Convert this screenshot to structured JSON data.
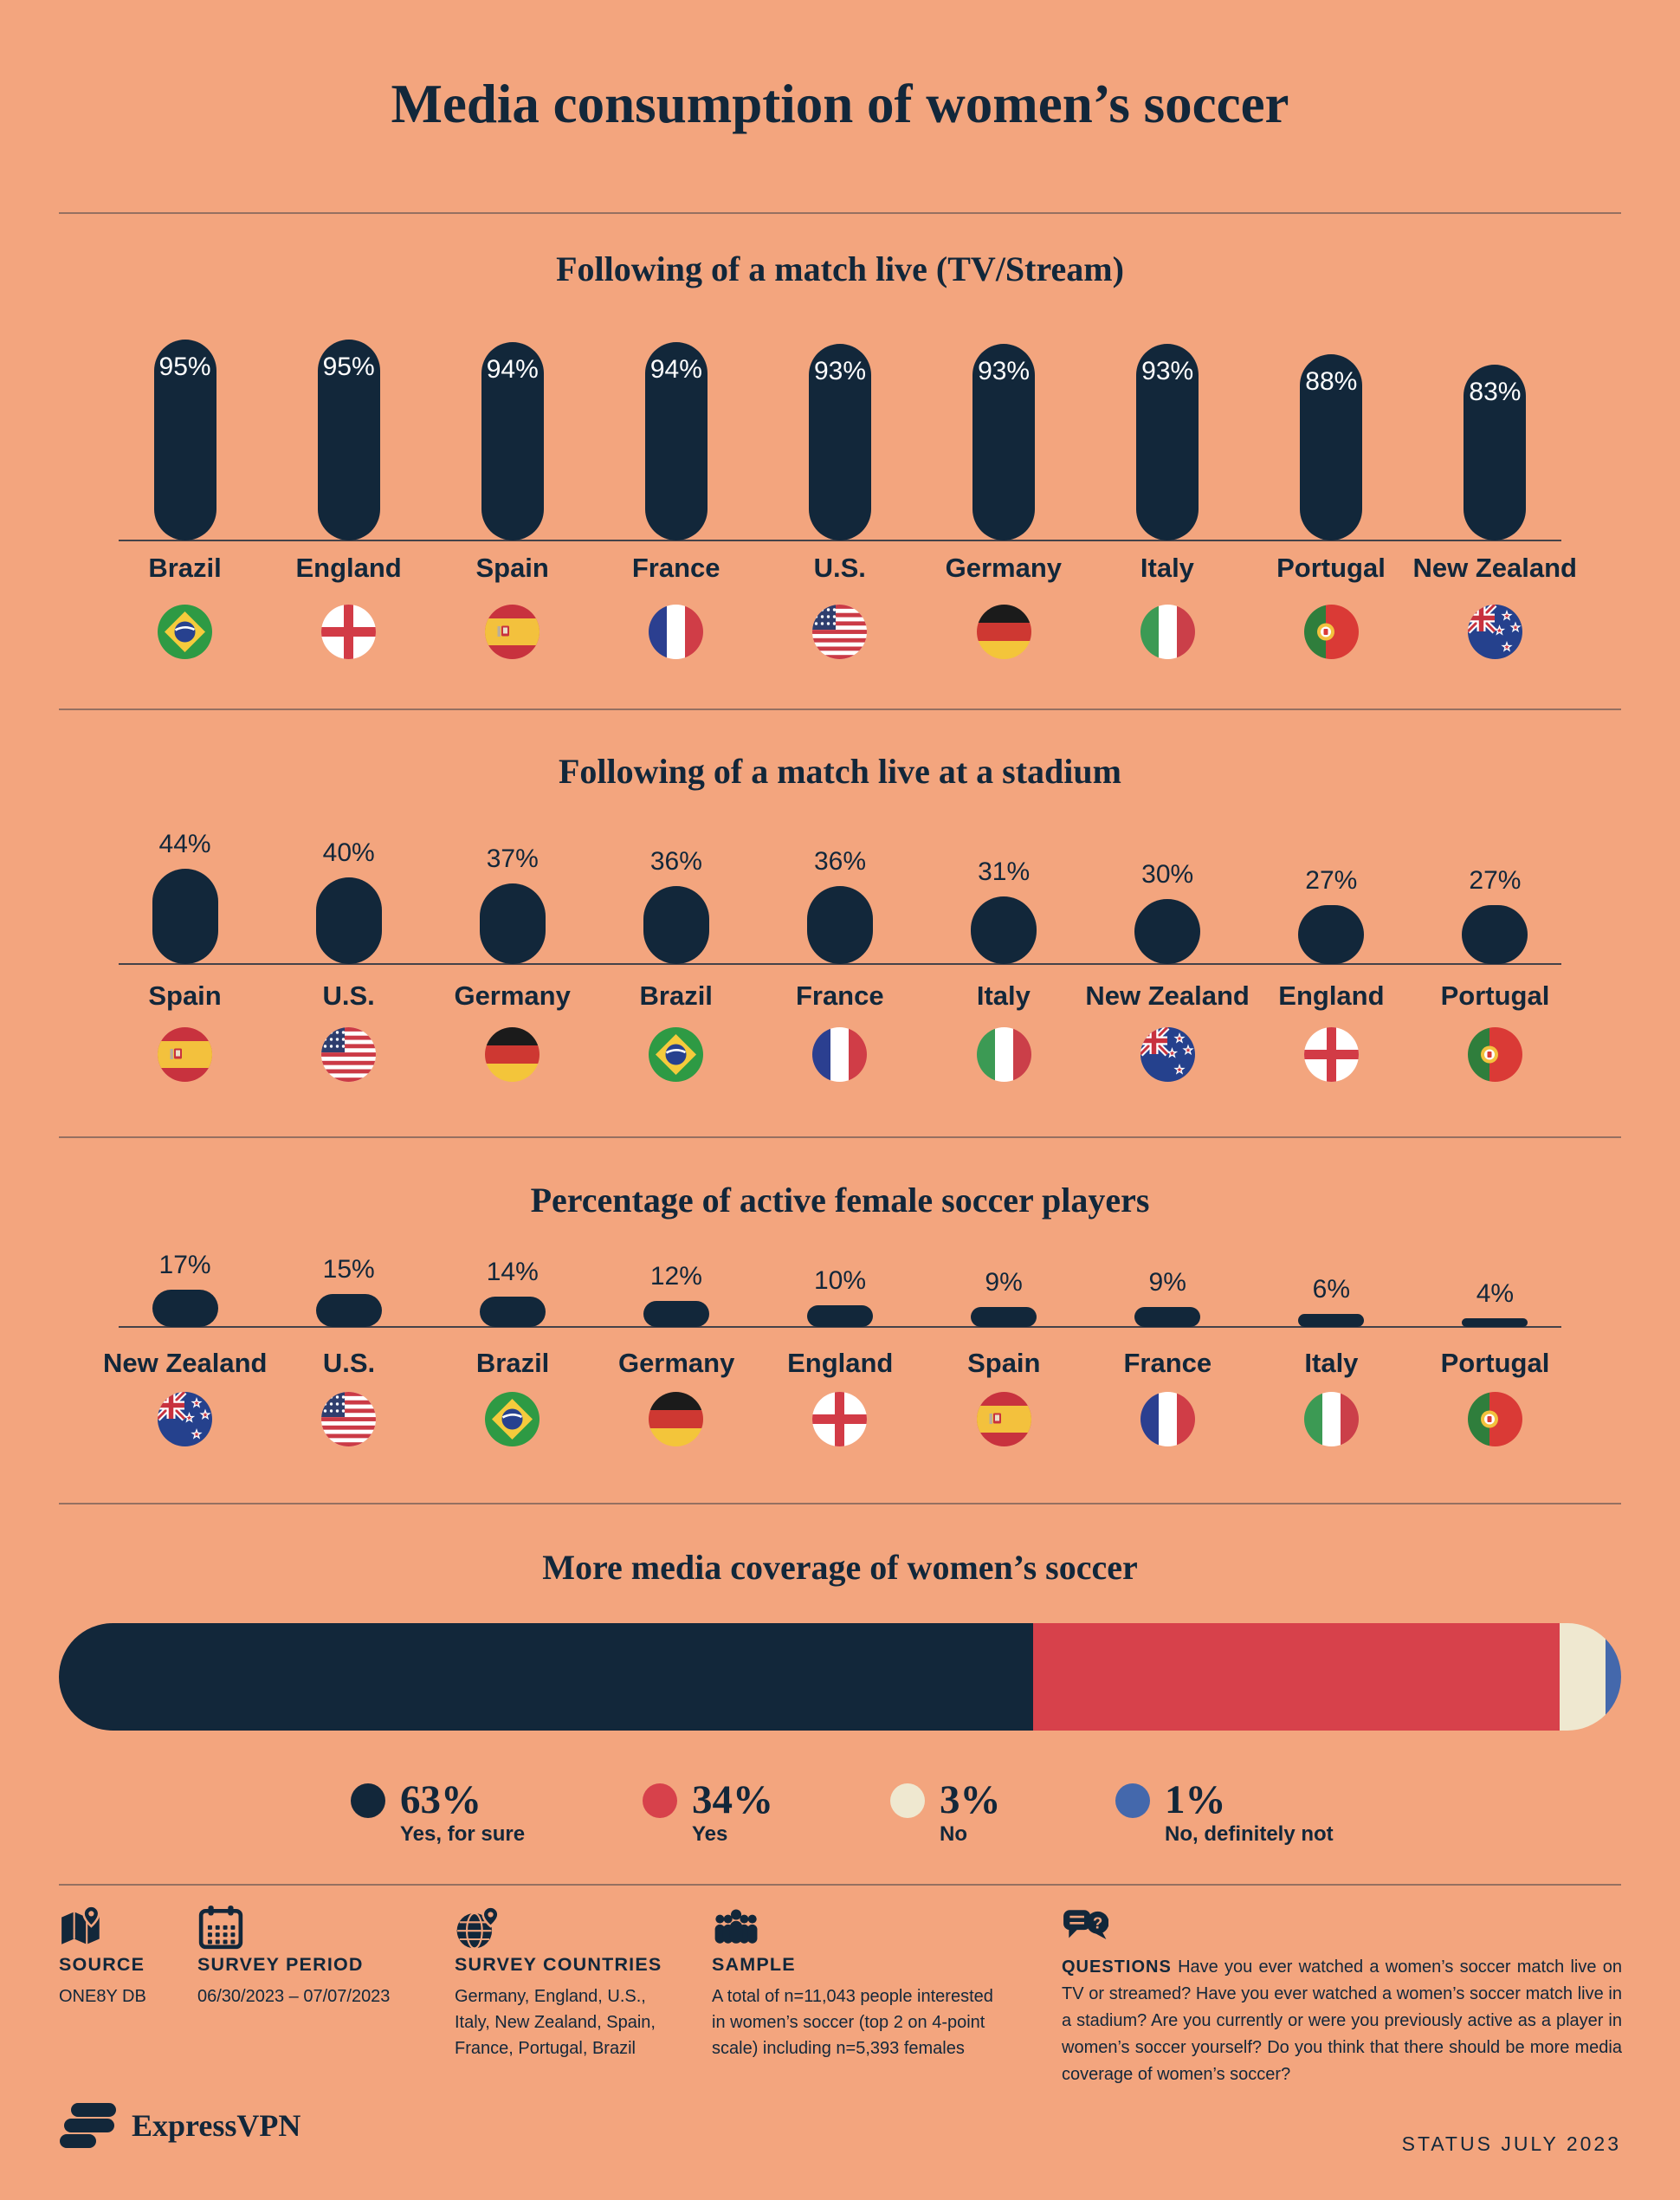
{
  "page": {
    "title": "Media consumption of women’s soccer",
    "brand": "ExpressVPN",
    "status": "STATUS JULY 2023"
  },
  "colors": {
    "background": "#F3A57E",
    "ink": "#12273A",
    "red": "#D7414B",
    "cream": "#EFE8D0",
    "blue": "#4468AC"
  },
  "chart_data": [
    {
      "id": "tv-stream",
      "type": "bar",
      "title": "Following of a match live (TV/Stream)",
      "unit": "%",
      "bar_shape": "pill",
      "value_label_position": "inside-top",
      "categories": [
        "Brazil",
        "England",
        "Spain",
        "France",
        "U.S.",
        "Germany",
        "Italy",
        "Portugal",
        "New Zealand"
      ],
      "values": [
        95,
        95,
        94,
        94,
        93,
        93,
        93,
        88,
        83
      ],
      "flags": [
        "brazil",
        "england",
        "spain",
        "france",
        "us",
        "germany",
        "italy",
        "portugal",
        "new-zealand"
      ],
      "ylim": [
        0,
        100
      ],
      "grid": false
    },
    {
      "id": "stadium",
      "type": "bar",
      "title": "Following of a match live at a stadium",
      "unit": "%",
      "bar_shape": "pill",
      "value_label_position": "above",
      "categories": [
        "Spain",
        "U.S.",
        "Germany",
        "Brazil",
        "France",
        "Italy",
        "New Zealand",
        "England",
        "Portugal"
      ],
      "values": [
        44,
        40,
        37,
        36,
        36,
        31,
        30,
        27,
        27
      ],
      "flags": [
        "spain",
        "us",
        "germany",
        "brazil",
        "france",
        "italy",
        "new-zealand",
        "england",
        "portugal"
      ],
      "ylim": [
        0,
        100
      ],
      "grid": false
    },
    {
      "id": "active-players",
      "type": "bar",
      "title": "Percentage of active female soccer players",
      "unit": "%",
      "bar_shape": "pill",
      "value_label_position": "above",
      "categories": [
        "New Zealand",
        "U.S.",
        "Brazil",
        "Germany",
        "England",
        "Spain",
        "France",
        "Italy",
        "Portugal"
      ],
      "values": [
        17,
        15,
        14,
        12,
        10,
        9,
        9,
        6,
        4
      ],
      "flags": [
        "new-zealand",
        "us",
        "brazil",
        "germany",
        "england",
        "spain",
        "france",
        "italy",
        "portugal"
      ],
      "ylim": [
        0,
        100
      ],
      "grid": false
    },
    {
      "id": "media-coverage",
      "type": "stacked-bar",
      "title": "More media coverage of women’s soccer",
      "unit": "%",
      "segments": [
        {
          "label": "Yes, for sure",
          "value": 63,
          "color": "#12273A"
        },
        {
          "label": "Yes",
          "value": 34,
          "color": "#D7414B"
        },
        {
          "label": "No",
          "value": 3,
          "color": "#EFE8D0"
        },
        {
          "label": "No, definitely not",
          "value": 1,
          "color": "#4468AC"
        }
      ],
      "legend_position": "below"
    }
  ],
  "footer": {
    "source": {
      "label": "SOURCE",
      "value": "ONE8Y DB",
      "icon": "map-icon"
    },
    "survey_period": {
      "label": "SURVEY PERIOD",
      "value": "06/30/2023 – 07/07/2023",
      "icon": "calendar-icon"
    },
    "survey_countries": {
      "label": "SURVEY COUNTRIES",
      "value": "Germany, England, U.S., Italy, New Zealand, Spain, France, Portugal, Brazil",
      "icon": "globe-icon"
    },
    "sample": {
      "label": "SAMPLE",
      "value": "A total of n=11,043 people interested in women’s soccer (top 2 on 4-point scale) including n=5,393 females",
      "icon": "people-icon"
    },
    "questions": {
      "label": "QUESTIONS",
      "value": "Have you ever watched a women’s soccer match live on TV or streamed? Have you ever watched a women’s soccer match live in a stadium? Are you currently or were you previously active as a player in women’s soccer yourself? Do you think that there should be more media coverage of women’s soccer?",
      "icon": "chat-icon"
    }
  }
}
